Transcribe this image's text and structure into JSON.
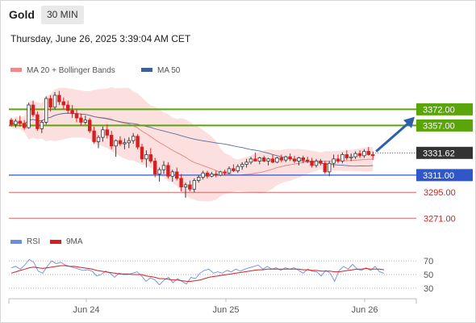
{
  "header": {
    "instrument": "Gold",
    "timeframe": "30 MIN",
    "datetime": "Thursday, June 26, 2025 3:39:04 AM CET"
  },
  "colors": {
    "resistance": "#5aa60a",
    "support_blue": "#2f57c9",
    "support_red": "#e06060",
    "bull": "#3a3a3a",
    "bear": "#d42020",
    "band": "#fbd5d5",
    "ma50": "#5a6f9c",
    "ma20": "#e88080",
    "arrow": "#2f5fa8",
    "rsi": "#6b8fe0",
    "rsi_ma": "#d42020"
  },
  "chart_data": [
    {
      "type": "candlestick",
      "legend": [
        {
          "name": "MA 20 + Bollinger Bands",
          "color": "#f08a8a"
        },
        {
          "name": "MA 50",
          "color": "#3f5f9a"
        }
      ],
      "x_ticks": [
        "Jun 24",
        "Jun 25",
        "Jun 26"
      ],
      "ylim": [
        3260,
        3385
      ],
      "current_price": "3331.62",
      "levels": [
        {
          "label": "3372.00",
          "value": 3372,
          "kind": "resistance"
        },
        {
          "label": "3357.00",
          "value": 3357,
          "kind": "resistance"
        },
        {
          "label": "3311.00",
          "value": 3311,
          "kind": "support_major"
        },
        {
          "label": "3295.00",
          "value": 3295,
          "kind": "support"
        },
        {
          "label": "3271.00",
          "value": 3271,
          "kind": "support"
        }
      ],
      "forecast": {
        "from": 3333,
        "to": 3365,
        "direction": "up"
      },
      "candles": [
        [
          3362,
          3364,
          3356,
          3358
        ],
        [
          3358,
          3363,
          3355,
          3361
        ],
        [
          3361,
          3366,
          3356,
          3359
        ],
        [
          3359,
          3362,
          3353,
          3355
        ],
        [
          3355,
          3378,
          3354,
          3376
        ],
        [
          3376,
          3380,
          3365,
          3367
        ],
        [
          3367,
          3370,
          3352,
          3354
        ],
        [
          3354,
          3362,
          3350,
          3360
        ],
        [
          3360,
          3384,
          3358,
          3382
        ],
        [
          3382,
          3385,
          3370,
          3374
        ],
        [
          3374,
          3388,
          3372,
          3385
        ],
        [
          3385,
          3389,
          3376,
          3379
        ],
        [
          3379,
          3383,
          3372,
          3376
        ],
        [
          3376,
          3380,
          3368,
          3371
        ],
        [
          3371,
          3376,
          3364,
          3368
        ],
        [
          3368,
          3372,
          3360,
          3364
        ],
        [
          3364,
          3368,
          3357,
          3360
        ],
        [
          3360,
          3366,
          3358,
          3362
        ],
        [
          3362,
          3364,
          3350,
          3352
        ],
        [
          3352,
          3356,
          3340,
          3342
        ],
        [
          3342,
          3348,
          3336,
          3346
        ],
        [
          3346,
          3356,
          3342,
          3353
        ],
        [
          3353,
          3358,
          3345,
          3348
        ],
        [
          3348,
          3352,
          3335,
          3338
        ],
        [
          3338,
          3344,
          3328,
          3343
        ],
        [
          3343,
          3347,
          3338,
          3340
        ],
        [
          3340,
          3345,
          3335,
          3341
        ],
        [
          3341,
          3346,
          3336,
          3343
        ],
        [
          3343,
          3350,
          3340,
          3347
        ],
        [
          3347,
          3349,
          3335,
          3337
        ],
        [
          3337,
          3340,
          3323,
          3326
        ],
        [
          3326,
          3334,
          3318,
          3330
        ],
        [
          3330,
          3336,
          3322,
          3324
        ],
        [
          3324,
          3327,
          3309,
          3312
        ],
        [
          3312,
          3318,
          3305,
          3316
        ],
        [
          3316,
          3324,
          3312,
          3320
        ],
        [
          3320,
          3323,
          3308,
          3310
        ],
        [
          3310,
          3316,
          3305,
          3314
        ],
        [
          3314,
          3318,
          3306,
          3308
        ],
        [
          3308,
          3312,
          3296,
          3300
        ],
        [
          3300,
          3304,
          3290,
          3302
        ],
        [
          3302,
          3306,
          3296,
          3298
        ],
        [
          3298,
          3308,
          3295,
          3306
        ],
        [
          3306,
          3311,
          3304,
          3309
        ],
        [
          3309,
          3315,
          3307,
          3313
        ],
        [
          3313,
          3315,
          3308,
          3310
        ],
        [
          3310,
          3314,
          3309,
          3312
        ],
        [
          3312,
          3315,
          3309,
          3311
        ],
        [
          3311,
          3315,
          3310,
          3314
        ],
        [
          3314,
          3316,
          3311,
          3313
        ],
        [
          3313,
          3319,
          3312,
          3317
        ],
        [
          3317,
          3321,
          3314,
          3315
        ],
        [
          3315,
          3321,
          3313,
          3319
        ],
        [
          3319,
          3323,
          3316,
          3321
        ],
        [
          3321,
          3326,
          3318,
          3323
        ],
        [
          3323,
          3328,
          3321,
          3326
        ],
        [
          3326,
          3332,
          3324,
          3324
        ],
        [
          3324,
          3328,
          3321,
          3327
        ],
        [
          3327,
          3329,
          3323,
          3324
        ],
        [
          3324,
          3327,
          3320,
          3326
        ],
        [
          3326,
          3330,
          3322,
          3323
        ],
        [
          3323,
          3328,
          3322,
          3327
        ],
        [
          3327,
          3330,
          3323,
          3325
        ],
        [
          3325,
          3329,
          3323,
          3328
        ],
        [
          3328,
          3331,
          3324,
          3326
        ],
        [
          3326,
          3329,
          3322,
          3324
        ],
        [
          3324,
          3328,
          3320,
          3327
        ],
        [
          3327,
          3329,
          3322,
          3325
        ],
        [
          3325,
          3328,
          3322,
          3324
        ],
        [
          3324,
          3327,
          3318,
          3320
        ],
        [
          3320,
          3326,
          3318,
          3324
        ],
        [
          3324,
          3326,
          3320,
          3322
        ],
        [
          3322,
          3324,
          3312,
          3314
        ],
        [
          3314,
          3324,
          3310,
          3322
        ],
        [
          3322,
          3330,
          3318,
          3326
        ],
        [
          3326,
          3330,
          3322,
          3324
        ],
        [
          3324,
          3332,
          3322,
          3330
        ],
        [
          3330,
          3334,
          3325,
          3327
        ],
        [
          3327,
          3331,
          3324,
          3328
        ],
        [
          3328,
          3333,
          3326,
          3331
        ],
        [
          3331,
          3334,
          3327,
          3329
        ],
        [
          3329,
          3335,
          3327,
          3333
        ],
        [
          3333,
          3337,
          3329,
          3330
        ],
        [
          3330,
          3333,
          3325,
          3329
        ]
      ]
    },
    {
      "type": "line",
      "legend": [
        {
          "name": "RSI",
          "color": "#6b8fe0"
        },
        {
          "name": "9MA",
          "color": "#d42020"
        }
      ],
      "y_ticks": [
        "70",
        "50",
        "30"
      ],
      "ylim": [
        18,
        82
      ],
      "series": [
        {
          "values": [
            60,
            62,
            58,
            64,
            72,
            68,
            55,
            52,
            62,
            70,
            66,
            68,
            64,
            62,
            60,
            58,
            56,
            57,
            55,
            48,
            50,
            55,
            52,
            46,
            52,
            50,
            50,
            52,
            54,
            48,
            40,
            45,
            42,
            35,
            42,
            46,
            38,
            44,
            40,
            36,
            46,
            44,
            52,
            56,
            58,
            52,
            54,
            52,
            56,
            54,
            58,
            55,
            58,
            60,
            62,
            64,
            58,
            62,
            58,
            60,
            56,
            60,
            58,
            60,
            56,
            52,
            58,
            55,
            54,
            48,
            56,
            52,
            40,
            56,
            62,
            58,
            65,
            58,
            56,
            60,
            56,
            62,
            54,
            52
          ]
        },
        {
          "values": [
            52,
            54,
            56,
            58,
            60,
            61,
            60,
            59,
            60,
            61,
            62,
            63,
            63,
            62,
            62,
            61,
            60,
            59,
            58,
            56,
            55,
            54,
            53,
            52,
            51,
            51,
            51,
            50,
            50,
            50,
            48,
            47,
            46,
            44,
            44,
            43,
            42,
            42,
            41,
            40,
            40,
            41,
            42,
            44,
            46,
            47,
            48,
            49,
            50,
            51,
            52,
            53,
            54,
            55,
            56,
            57,
            57,
            58,
            58,
            58,
            58,
            58,
            58,
            58,
            58,
            57,
            57,
            56,
            56,
            55,
            55,
            55,
            54,
            54,
            55,
            56,
            57,
            58,
            58,
            59,
            58,
            58,
            58,
            57
          ]
        }
      ]
    }
  ]
}
